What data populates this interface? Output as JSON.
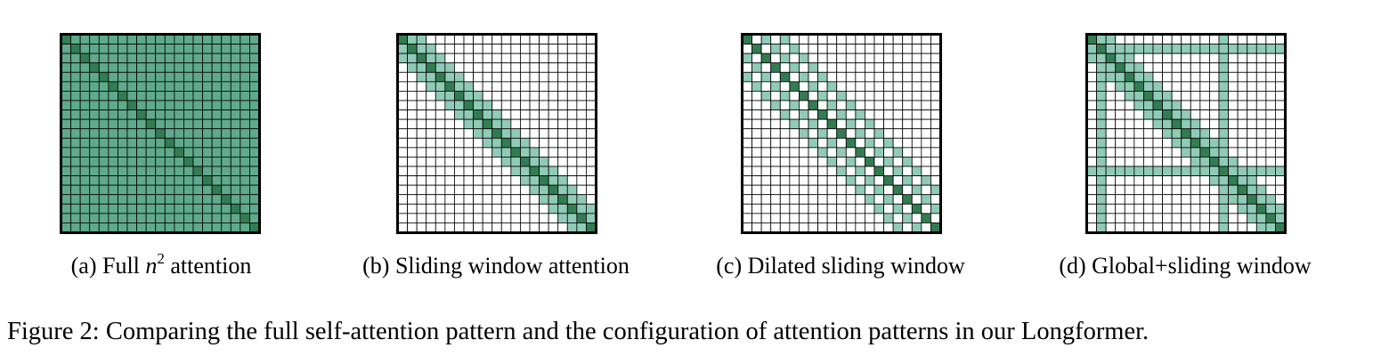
{
  "colors": {
    "full": "#5faa8c",
    "window": "#8fcbb7",
    "diagonal": "#327c52",
    "empty": "#ffffff",
    "grid": "#000000"
  },
  "grid_size": 21,
  "window_half_width": 2,
  "dilation": 2,
  "global_indices": [
    1,
    14
  ],
  "panels": [
    {
      "pattern": "full",
      "caption_prefix": "(a) Full ",
      "caption_math": "n",
      "caption_sup": "2",
      "caption_suffix": " attention"
    },
    {
      "pattern": "sliding",
      "caption": "(b) Sliding window attention"
    },
    {
      "pattern": "dilated",
      "caption": "(c) Dilated sliding window"
    },
    {
      "pattern": "global",
      "caption": "(d) Global+sliding window"
    }
  ],
  "figure_caption": "Figure 2: Comparing the full self-attention pattern and the configuration of attention patterns in our Longformer."
}
